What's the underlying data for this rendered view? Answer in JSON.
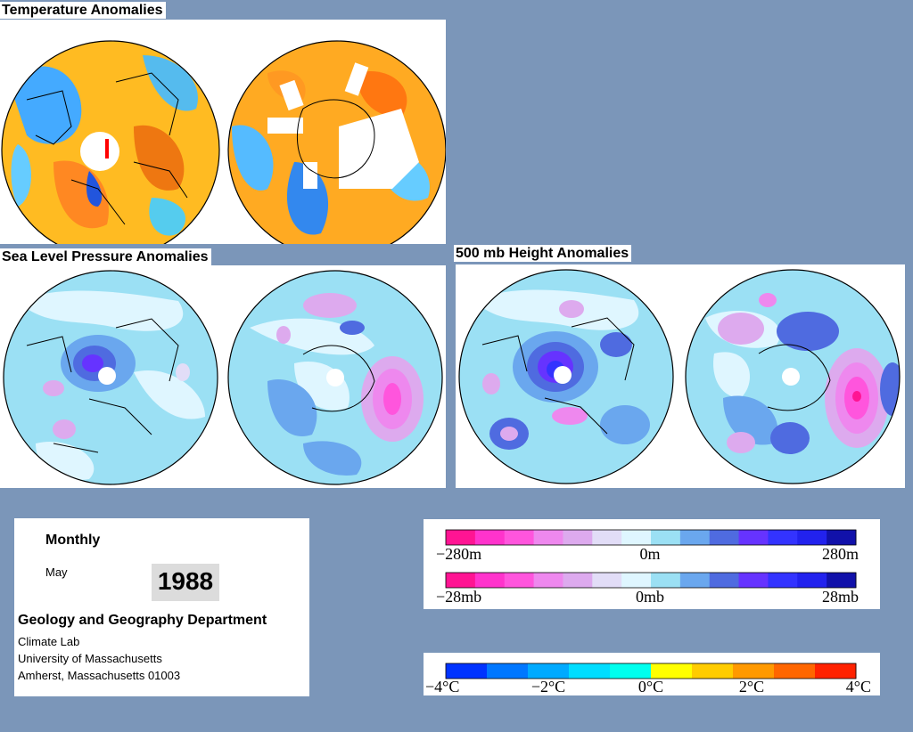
{
  "titles": {
    "temperature": "Temperature Anomalies",
    "slp": "Sea Level Pressure Anomalies",
    "height500": "500 mb Height Anomalies"
  },
  "info": {
    "period": "Monthly",
    "month": "May",
    "year": "1988",
    "dept": "Geology and Geography Department",
    "lab": "Climate Lab",
    "univ": "University of Massachusetts",
    "city": "Amherst, Massachusetts 01003"
  },
  "legend_height": {
    "labels": [
      "−280m",
      "0m",
      "280m"
    ],
    "colors": [
      "#ff1493",
      "#ff33cc",
      "#ff55dd",
      "#ee88ee",
      "#ddaaee",
      "#e2ddf7",
      "#dff6ff",
      "#9be0f4",
      "#6aa7ee",
      "#4f6be0",
      "#6633ff",
      "#3333ff",
      "#2222ee",
      "#1111aa"
    ]
  },
  "legend_pressure": {
    "labels": [
      "−28mb",
      "0mb",
      "28mb"
    ]
  },
  "legend_temp": {
    "labels": [
      "−4°C",
      "−2°C",
      "0°C",
      "2°C",
      "4°C"
    ],
    "colors": [
      "#0033ff",
      "#0077ff",
      "#00aaff",
      "#00ddff",
      "#00ffee",
      "#ffff00",
      "#ffcc00",
      "#ff9900",
      "#ff6600",
      "#ff2200"
    ]
  },
  "colors": {
    "background": "#7b96b9",
    "cold": "#2288ff",
    "warm": "#ff8800",
    "neutral_fill": "#dff6ff"
  }
}
